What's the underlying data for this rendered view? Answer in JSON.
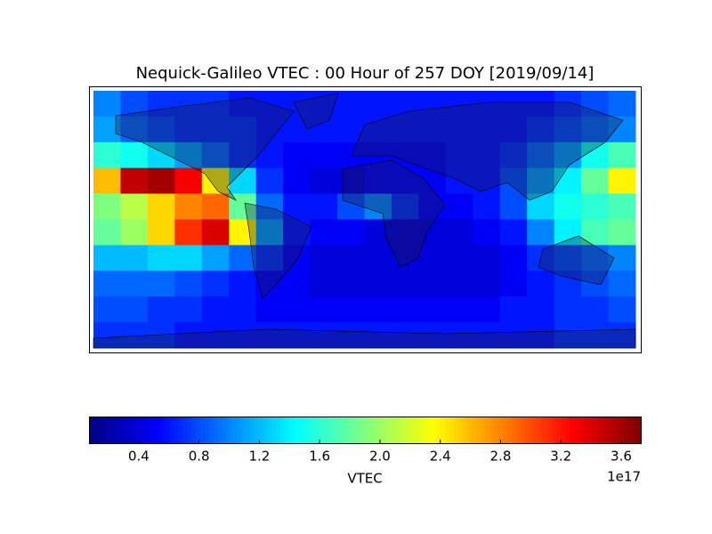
{
  "chart_data": {
    "type": "heatmap",
    "title": "Nequick-Galileo VTEC : 00 Hour of 257 DOY [2019/09/14]",
    "colormap": "jet",
    "clim": [
      0.07,
      3.73
    ],
    "values": [
      [
        1.0,
        0.8,
        0.7,
        0.7,
        0.7,
        0.6,
        0.6,
        0.6,
        0.6,
        0.6,
        0.6,
        0.6,
        0.6,
        0.6,
        0.6,
        0.6,
        0.6,
        0.7,
        0.8,
        0.9
      ],
      [
        1.1,
        0.9,
        0.8,
        0.7,
        0.7,
        0.7,
        0.6,
        0.6,
        0.6,
        0.6,
        0.6,
        0.6,
        0.6,
        0.6,
        0.6,
        0.6,
        0.7,
        0.8,
        0.9,
        1.0
      ],
      [
        1.6,
        1.5,
        1.3,
        1.1,
        0.9,
        0.7,
        0.6,
        0.5,
        0.5,
        0.5,
        0.5,
        0.5,
        0.5,
        0.6,
        0.6,
        0.7,
        0.9,
        1.1,
        1.5,
        1.7
      ],
      [
        2.6,
        3.5,
        3.6,
        3.3,
        2.4,
        1.3,
        0.7,
        0.5,
        0.4,
        0.4,
        0.5,
        0.5,
        0.5,
        0.6,
        0.6,
        0.8,
        1.1,
        1.4,
        1.8,
        2.4
      ],
      [
        1.9,
        2.1,
        2.5,
        2.8,
        2.9,
        1.8,
        0.9,
        0.6,
        0.6,
        0.8,
        1.0,
        0.7,
        0.5,
        0.5,
        0.6,
        0.8,
        1.3,
        1.5,
        1.6,
        1.7
      ],
      [
        1.8,
        2.0,
        2.5,
        3.1,
        3.4,
        2.4,
        1.1,
        0.6,
        0.5,
        0.5,
        0.4,
        0.4,
        0.4,
        0.4,
        0.5,
        0.6,
        1.0,
        1.4,
        1.7,
        1.8
      ],
      [
        1.2,
        1.2,
        1.3,
        1.3,
        1.1,
        0.9,
        0.7,
        0.5,
        0.4,
        0.4,
        0.4,
        0.4,
        0.4,
        0.4,
        0.4,
        0.5,
        0.7,
        0.8,
        0.9,
        1.0
      ],
      [
        0.9,
        0.9,
        0.9,
        0.8,
        0.7,
        0.6,
        0.5,
        0.5,
        0.4,
        0.4,
        0.4,
        0.4,
        0.4,
        0.4,
        0.4,
        0.5,
        0.6,
        0.7,
        0.8,
        0.9
      ],
      [
        0.8,
        0.8,
        0.7,
        0.7,
        0.6,
        0.6,
        0.5,
        0.5,
        0.5,
        0.5,
        0.5,
        0.5,
        0.5,
        0.5,
        0.5,
        0.6,
        0.6,
        0.7,
        0.7,
        0.8
      ],
      [
        0.7,
        0.7,
        0.7,
        0.6,
        0.6,
        0.6,
        0.6,
        0.6,
        0.6,
        0.6,
        0.6,
        0.6,
        0.6,
        0.6,
        0.6,
        0.6,
        0.6,
        0.7,
        0.7,
        0.7
      ]
    ],
    "colorbar": {
      "label": "VTEC",
      "offset_text": "1e17",
      "ticks": [
        0.4,
        0.8,
        1.2,
        1.6,
        {
          "value": 2,
          "label": "2.0"
        },
        2.4,
        2.8,
        3.2,
        3.6
      ]
    }
  }
}
